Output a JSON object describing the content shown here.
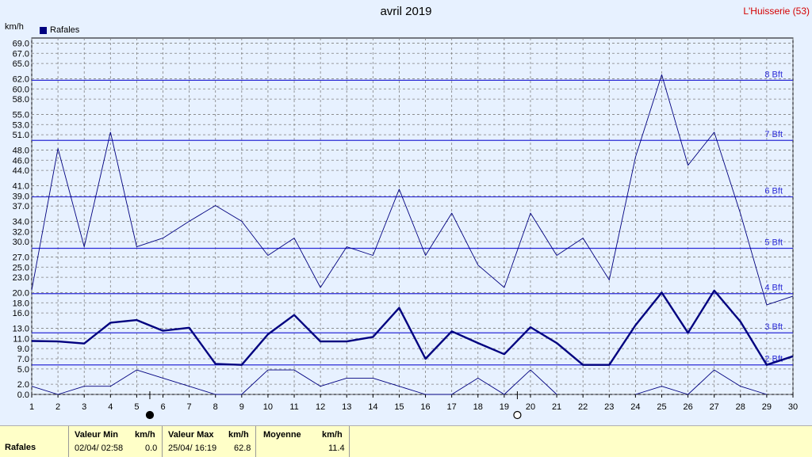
{
  "header": {
    "title": "avril 2019",
    "station": "L'Huisserie (53)",
    "unit": "km/h",
    "legend_label": "Rafales"
  },
  "colors": {
    "background": "#e7f1ff",
    "series": "#00007f",
    "bft_line": "#2b2bd6",
    "grid": "#808080",
    "station_text": "#d40000",
    "footer_bg": "#ffffc8"
  },
  "chart_data": {
    "type": "line",
    "ylabel": "km/h",
    "ylim": [
      0,
      70
    ],
    "xlim": [
      1,
      30
    ],
    "x": [
      1,
      2,
      3,
      4,
      5,
      6,
      7,
      8,
      9,
      10,
      11,
      12,
      13,
      14,
      15,
      16,
      17,
      18,
      19,
      20,
      21,
      22,
      23,
      24,
      25,
      26,
      27,
      28,
      29,
      30
    ],
    "y_ticks": [
      "0.0",
      "2.0",
      "5.0",
      "7.0",
      "9.0",
      "11.0",
      "13.0",
      "16.0",
      "18.0",
      "20.0",
      "23.0",
      "25.0",
      "27.0",
      "30.0",
      "32.0",
      "34.0",
      "37.0",
      "39.0",
      "41.0",
      "44.0",
      "46.0",
      "48.0",
      "51.0",
      "53.0",
      "55.0",
      "58.0",
      "60.0",
      "62.0",
      "65.0",
      "67.0",
      "69.0"
    ],
    "grid": true,
    "series": [
      {
        "name": "Rafales",
        "style": "max-thin",
        "values": [
          20.5,
          48.3,
          29.0,
          51.5,
          29.0,
          30.7,
          34.0,
          37.1,
          34.0,
          27.3,
          30.7,
          21.0,
          29.0,
          27.3,
          40.3,
          27.3,
          35.6,
          25.4,
          21.0,
          35.6,
          27.3,
          30.7,
          22.5,
          46.6,
          62.8,
          45.0,
          51.5,
          35.5,
          17.6,
          19.3
        ]
      },
      {
        "style": "mean-thick",
        "values": [
          10.5,
          10.4,
          10.0,
          14.1,
          14.6,
          12.5,
          13.1,
          6.0,
          5.8,
          11.8,
          15.6,
          10.4,
          10.4,
          11.3,
          17.0,
          7.0,
          12.4,
          10.1,
          7.9,
          13.2,
          10.1,
          5.8,
          5.8,
          13.6,
          20.0,
          12.1,
          20.4,
          14.3,
          5.8,
          7.5
        ]
      },
      {
        "style": "min-thin",
        "values": [
          1.6,
          0.0,
          1.6,
          1.6,
          4.8,
          3.2,
          1.6,
          0.0,
          0.0,
          4.8,
          4.8,
          1.6,
          3.2,
          3.2,
          1.6,
          0.0,
          0.0,
          3.2,
          0.0,
          4.8,
          0.0,
          null,
          null,
          0.0,
          1.6,
          0.0,
          4.8,
          1.6,
          0.0,
          null
        ]
      }
    ],
    "beaufort_lines": [
      {
        "label": "2 Bft",
        "value": 5.8
      },
      {
        "label": "3 Bft",
        "value": 12.1
      },
      {
        "label": "4 Bft",
        "value": 19.8
      },
      {
        "label": "5 Bft",
        "value": 28.7
      },
      {
        "label": "6 Bft",
        "value": 38.8
      },
      {
        "label": "7 Bft",
        "value": 49.9
      },
      {
        "label": "8 Bft",
        "value": 61.7
      }
    ],
    "moon_phases": [
      {
        "day": 5.5,
        "phase": "new"
      },
      {
        "day": 19.5,
        "phase": "full"
      }
    ]
  },
  "footer": {
    "row_label": "Rafales",
    "min_title": "Valeur Min",
    "min_unit": "km/h",
    "min_when": "02/04/  02:58",
    "min_value": "0.0",
    "max_title": "Valeur Max",
    "max_unit": "km/h",
    "max_when": "25/04/  16:19",
    "max_value": "62.8",
    "mean_title": "Moyenne",
    "mean_unit": "km/h",
    "mean_value": "11.4"
  }
}
